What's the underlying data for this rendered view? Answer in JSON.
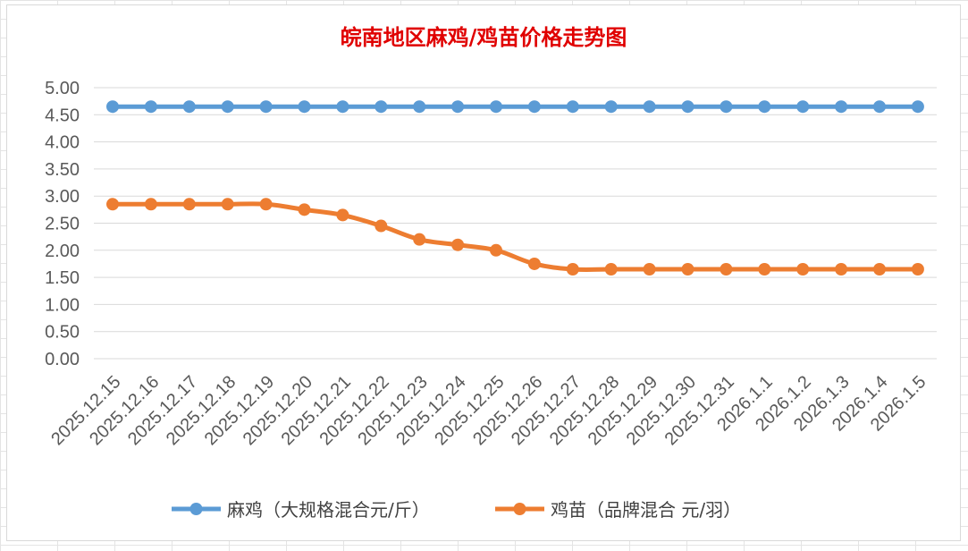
{
  "chart_data": {
    "type": "line",
    "title": "皖南地区麻鸡/鸡苗价格走势图",
    "xlabel": "",
    "ylabel": "",
    "ylim": [
      0,
      5
    ],
    "yticks": [
      "0.00",
      "0.50",
      "1.00",
      "1.50",
      "2.00",
      "2.50",
      "3.00",
      "3.50",
      "4.00",
      "4.50",
      "5.00"
    ],
    "grid": true,
    "legend_position": "bottom",
    "categories": [
      "2025.12.15",
      "2025.12.16",
      "2025.12.17",
      "2025.12.18",
      "2025.12.19",
      "2025.12.20",
      "2025.12.21",
      "2025.12.22",
      "2025.12.23",
      "2025.12.24",
      "2025.12.25",
      "2025.12.26",
      "2025.12.27",
      "2025.12.28",
      "2025.12.29",
      "2025.12.30",
      "2025.12.31",
      "2026.1.1",
      "2026.1.2",
      "2026.1.3",
      "2026.1.4",
      "2026.1.5"
    ],
    "series": [
      {
        "name": "麻鸡（大规格混合元/斤）",
        "color": "#5b9bd5",
        "values": [
          4.65,
          4.65,
          4.65,
          4.65,
          4.65,
          4.65,
          4.65,
          4.65,
          4.65,
          4.65,
          4.65,
          4.65,
          4.65,
          4.65,
          4.65,
          4.65,
          4.65,
          4.65,
          4.65,
          4.65,
          4.65,
          4.65
        ]
      },
      {
        "name": "鸡苗（品牌混合 元/羽）",
        "color": "#ed7d31",
        "values": [
          2.85,
          2.85,
          2.85,
          2.85,
          2.85,
          2.75,
          2.65,
          2.45,
          2.2,
          2.1,
          2.0,
          1.75,
          1.65,
          1.65,
          1.65,
          1.65,
          1.65,
          1.65,
          1.65,
          1.65,
          1.65,
          1.65
        ]
      }
    ]
  }
}
